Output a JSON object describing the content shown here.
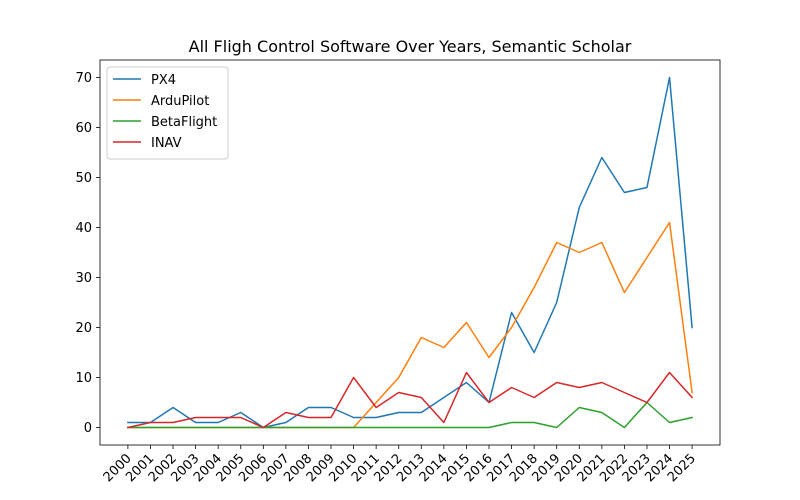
{
  "chart_data": {
    "type": "line",
    "title": "All Fligh Control Software Over Years, Semantic Scholar",
    "xlabel": "",
    "ylabel": "",
    "categories": [
      "2000",
      "2001",
      "2002",
      "2003",
      "2004",
      "2005",
      "2006",
      "2007",
      "2008",
      "2009",
      "2010",
      "2011",
      "2012",
      "2013",
      "2014",
      "2015",
      "2016",
      "2017",
      "2018",
      "2019",
      "2020",
      "2021",
      "2022",
      "2023",
      "2024",
      "2025"
    ],
    "ylim": [
      -3.5,
      73.5
    ],
    "yticks": [
      0,
      10,
      20,
      30,
      40,
      50,
      60,
      70
    ],
    "grid": false,
    "legend_position": "top-left",
    "series": [
      {
        "name": "PX4",
        "color": "#1f77b4",
        "values": [
          1,
          1,
          4,
          1,
          1,
          3,
          0,
          1,
          4,
          4,
          2,
          2,
          3,
          3,
          6,
          9,
          5,
          23,
          15,
          25,
          44,
          54,
          47,
          48,
          70,
          20
        ]
      },
      {
        "name": "ArduPilot",
        "color": "#ff7f0e",
        "values": [
          0,
          0,
          0,
          0,
          0,
          0,
          0,
          0,
          0,
          0,
          0,
          5,
          10,
          18,
          16,
          21,
          14,
          20,
          28,
          37,
          35,
          37,
          27,
          34,
          41,
          7
        ]
      },
      {
        "name": "BetaFlight",
        "color": "#2ca02c",
        "values": [
          0,
          0,
          0,
          0,
          0,
          0,
          0,
          0,
          0,
          0,
          0,
          0,
          0,
          0,
          0,
          0,
          0,
          1,
          1,
          0,
          4,
          3,
          0,
          5,
          1,
          2
        ]
      },
      {
        "name": "INAV",
        "color": "#d62728",
        "values": [
          0,
          1,
          1,
          2,
          2,
          2,
          0,
          3,
          2,
          2,
          10,
          4,
          7,
          6,
          1,
          11,
          5,
          8,
          6,
          9,
          8,
          9,
          7,
          5,
          11,
          6
        ]
      }
    ]
  }
}
